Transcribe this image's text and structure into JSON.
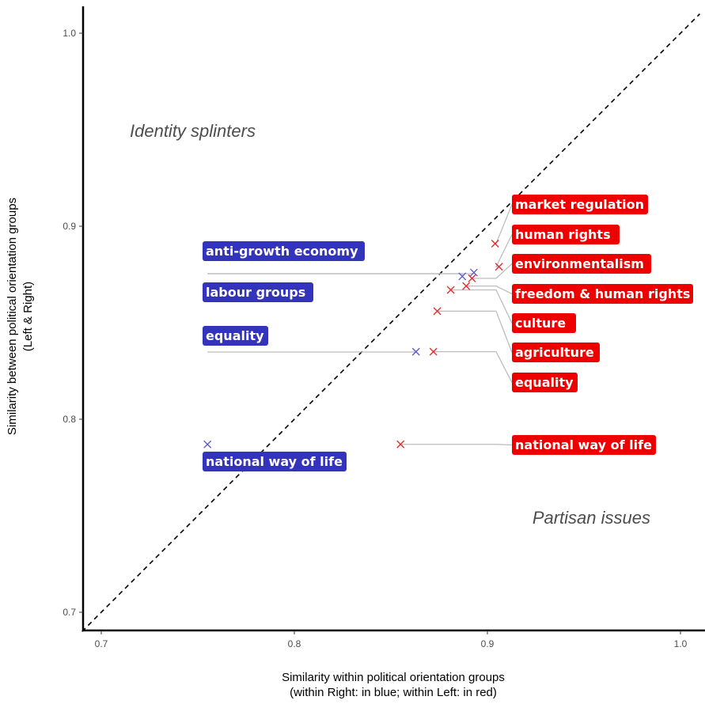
{
  "chart_data": {
    "type": "scatter",
    "xlabel": [
      "Similarity within political orientation groups",
      "(within Right: in blue; within Left: in red)"
    ],
    "ylabel": [
      "Similarity between political orientation groups",
      "(Left & Right)"
    ],
    "xlim": [
      0.69,
      1.01
    ],
    "ylim": [
      0.69,
      1.015
    ],
    "x_ticks": [
      0.7,
      0.8,
      0.9,
      1.0
    ],
    "x_tick_labels": [
      "0.7",
      "0.8",
      "0.9",
      "1.0"
    ],
    "y_ticks": [
      0.7,
      0.8,
      0.9,
      1.0
    ],
    "y_tick_labels": [
      "0.7",
      "0.8",
      "0.9",
      "1.0"
    ],
    "reference_line": "y = x (dashed)",
    "annotations": [
      "Identity splinters",
      "Partisan issues"
    ],
    "colors": {
      "right": "#3333bb",
      "left": "#ee0000",
      "point_right": "#5b5bd6",
      "point_left": "#e03030"
    },
    "series": [
      {
        "name": "within Right",
        "color": "#3333bb",
        "points": [
          {
            "label": "anti-growth economy",
            "x": 0.893,
            "y": 0.876
          },
          {
            "label": "labour groups",
            "x": 0.887,
            "y": 0.874
          },
          {
            "label": "equality",
            "x": 0.863,
            "y": 0.835
          },
          {
            "label": "national way of life",
            "x": 0.755,
            "y": 0.787
          }
        ]
      },
      {
        "name": "within Left",
        "color": "#ee0000",
        "points": [
          {
            "label": "market regulation",
            "x": 0.904,
            "y": 0.891
          },
          {
            "label": "human rights",
            "x": 0.906,
            "y": 0.879
          },
          {
            "label": "environmentalism",
            "x": 0.892,
            "y": 0.873
          },
          {
            "label": "freedom & human rights",
            "x": 0.889,
            "y": 0.869
          },
          {
            "label": "culture",
            "x": 0.881,
            "y": 0.867
          },
          {
            "label": "agriculture",
            "x": 0.874,
            "y": 0.856
          },
          {
            "label": "equality",
            "x": 0.872,
            "y": 0.835
          },
          {
            "label": "national way of life",
            "x": 0.855,
            "y": 0.787
          }
        ]
      }
    ]
  }
}
